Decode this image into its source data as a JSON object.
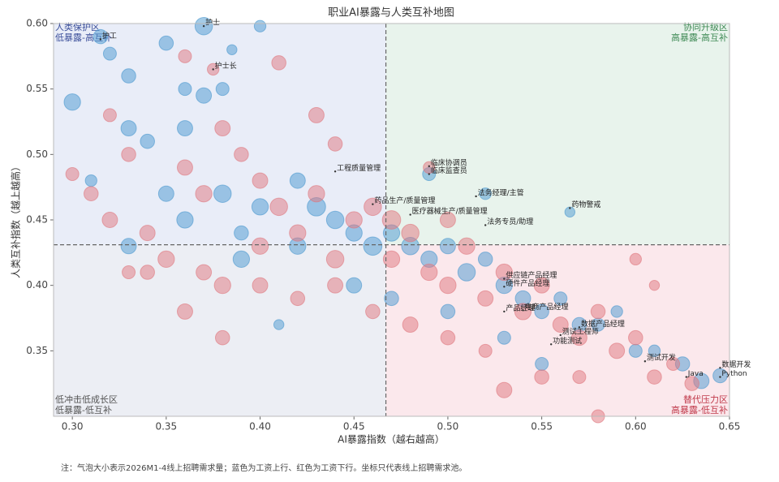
{
  "chart_data": {
    "type": "scatter",
    "title": "职业AI暴露与人类互补地图",
    "xlabel": "AI暴露指数（越右越高）",
    "ylabel": "人类互补指数（越上越高）",
    "note": "注：气泡大小表示2026M1-4线上招聘需求量；蓝色为工资上行、红色为工资下行。坐标只代表线上招聘需求池。",
    "xlim": [
      0.29,
      0.65
    ],
    "ylim": [
      0.3,
      0.6
    ],
    "xticks": [
      {
        "value": 0.3,
        "label": "0.30"
      },
      0.35,
      {
        "value": 0.4,
        "label": "0.40"
      },
      0.45,
      {
        "value": 0.5,
        "label": "0.50"
      },
      0.55,
      {
        "value": 0.6,
        "label": "0.60"
      },
      0.65
    ],
    "yticks": [
      0.35,
      {
        "value": 0.4,
        "label": "0.40"
      },
      0.45,
      {
        "value": 0.5,
        "label": "0.50"
      },
      0.55,
      {
        "value": 0.6,
        "label": "0.60"
      }
    ],
    "dividers": {
      "x": 0.467,
      "y": 0.431
    },
    "quadrants": [
      {
        "title": "人类保护区",
        "subtitle": "低暴露-高互补",
        "corner": "top-left",
        "color": "#3b4f9a",
        "fill": "#e9edf8"
      },
      {
        "title": "协同升级区",
        "subtitle": "高暴露-高互补",
        "corner": "top-right",
        "color": "#3f8a55",
        "fill": "#e8f3ec"
      },
      {
        "title": "低冲击低成长区",
        "subtitle": "低暴露-低互补",
        "corner": "bottom-left",
        "color": "#555555",
        "fill": "#eceef4"
      },
      {
        "title": "替代压力区",
        "subtitle": "高暴露-低互补",
        "corner": "bottom-right",
        "color": "#c0394a",
        "fill": "#fbe8ec"
      }
    ],
    "series": [
      {
        "color": "#4a98cf",
        "x": [
          0.3,
          0.315,
          0.32,
          0.33,
          0.34,
          0.35,
          0.36,
          0.37,
          0.38,
          0.4,
          0.37,
          0.33,
          0.35,
          0.36,
          0.38,
          0.39,
          0.4,
          0.42,
          0.43,
          0.44,
          0.45,
          0.46,
          0.47,
          0.48,
          0.49,
          0.5,
          0.51,
          0.52,
          0.53,
          0.54,
          0.55,
          0.56,
          0.57,
          0.58,
          0.59,
          0.6,
          0.61,
          0.625,
          0.635,
          0.645,
          0.49,
          0.52,
          0.565,
          0.41,
          0.45,
          0.47,
          0.5,
          0.53,
          0.55,
          0.33,
          0.39,
          0.42,
          0.31,
          0.385,
          0.36
        ],
        "values": [
          0.54,
          0.59,
          0.577,
          0.52,
          0.51,
          0.585,
          0.55,
          0.545,
          0.55,
          0.598,
          0.598,
          0.56,
          0.47,
          0.45,
          0.47,
          0.44,
          0.46,
          0.48,
          0.46,
          0.45,
          0.44,
          0.43,
          0.44,
          0.43,
          0.42,
          0.43,
          0.41,
          0.42,
          0.4,
          0.39,
          0.38,
          0.39,
          0.37,
          0.37,
          0.38,
          0.35,
          0.35,
          0.34,
          0.327,
          0.331,
          0.485,
          0.47,
          0.456,
          0.37,
          0.4,
          0.39,
          0.38,
          0.36,
          0.34,
          0.43,
          0.42,
          0.43,
          0.48,
          0.58,
          0.52
        ],
        "sizes": [
          40,
          30,
          25,
          35,
          30,
          30,
          25,
          35,
          25,
          20,
          45,
          30,
          35,
          40,
          45,
          30,
          40,
          35,
          50,
          45,
          40,
          50,
          40,
          45,
          40,
          35,
          45,
          30,
          40,
          35,
          30,
          25,
          30,
          25,
          20,
          25,
          20,
          30,
          35,
          30,
          25,
          20,
          15,
          15,
          35,
          30,
          30,
          25,
          25,
          35,
          40,
          40,
          20,
          15,
          35
        ]
      },
      {
        "color": "#e0767d",
        "x": [
          0.3,
          0.31,
          0.32,
          0.32,
          0.33,
          0.34,
          0.35,
          0.36,
          0.37,
          0.37,
          0.38,
          0.38,
          0.39,
          0.4,
          0.4,
          0.41,
          0.41,
          0.42,
          0.43,
          0.43,
          0.44,
          0.45,
          0.46,
          0.47,
          0.47,
          0.48,
          0.49,
          0.5,
          0.5,
          0.51,
          0.52,
          0.53,
          0.54,
          0.55,
          0.56,
          0.57,
          0.58,
          0.59,
          0.6,
          0.61,
          0.62,
          0.63,
          0.55,
          0.53,
          0.5,
          0.48,
          0.46,
          0.44,
          0.42,
          0.4,
          0.38,
          0.36,
          0.34,
          0.33,
          0.375,
          0.36,
          0.44,
          0.49,
          0.58,
          0.6,
          0.61,
          0.52,
          0.57
        ],
        "values": [
          0.485,
          0.47,
          0.45,
          0.53,
          0.5,
          0.44,
          0.42,
          0.49,
          0.47,
          0.41,
          0.4,
          0.52,
          0.5,
          0.48,
          0.43,
          0.46,
          0.57,
          0.44,
          0.53,
          0.47,
          0.42,
          0.45,
          0.46,
          0.45,
          0.42,
          0.44,
          0.41,
          0.45,
          0.4,
          0.43,
          0.39,
          0.41,
          0.38,
          0.4,
          0.37,
          0.36,
          0.38,
          0.35,
          0.36,
          0.33,
          0.34,
          0.325,
          0.33,
          0.32,
          0.36,
          0.37,
          0.38,
          0.4,
          0.39,
          0.4,
          0.36,
          0.38,
          0.41,
          0.41,
          0.565,
          0.575,
          0.508,
          0.49,
          0.3,
          0.42,
          0.4,
          0.35,
          0.33
        ],
        "sizes": [
          25,
          30,
          35,
          25,
          30,
          35,
          40,
          35,
          40,
          35,
          40,
          35,
          30,
          35,
          40,
          45,
          30,
          40,
          35,
          40,
          45,
          40,
          45,
          50,
          40,
          45,
          40,
          35,
          40,
          40,
          35,
          40,
          40,
          35,
          35,
          35,
          30,
          35,
          30,
          30,
          25,
          30,
          30,
          35,
          30,
          35,
          30,
          35,
          30,
          35,
          30,
          35,
          30,
          25,
          20,
          25,
          30,
          20,
          25,
          20,
          15,
          25,
          25
        ]
      }
    ],
    "annotations": [
      {
        "text": "护士",
        "x": 0.37,
        "y": 0.598
      },
      {
        "text": "护工",
        "x": 0.315,
        "y": 0.588
      },
      {
        "text": "护士长",
        "x": 0.375,
        "y": 0.565
      },
      {
        "text": "工程质量管理",
        "x": 0.44,
        "y": 0.487
      },
      {
        "text": "临床协调员",
        "x": 0.49,
        "y": 0.491
      },
      {
        "text": "临床监查员",
        "x": 0.49,
        "y": 0.485
      },
      {
        "text": "法务经理/主管",
        "x": 0.515,
        "y": 0.468
      },
      {
        "text": "药物警戒",
        "x": 0.565,
        "y": 0.459
      },
      {
        "text": "药品生产/质量管理",
        "x": 0.46,
        "y": 0.462
      },
      {
        "text": "医疗器械生产/质量管理",
        "x": 0.48,
        "y": 0.454
      },
      {
        "text": "法务专员/助理",
        "x": 0.52,
        "y": 0.446
      },
      {
        "text": "供应链产品经理",
        "x": 0.53,
        "y": 0.405
      },
      {
        "text": "硬件产品经理",
        "x": 0.53,
        "y": 0.399
      },
      {
        "text": "产品经理",
        "x": 0.53,
        "y": 0.38
      },
      {
        "text": "电商产品经理",
        "x": 0.54,
        "y": 0.381
      },
      {
        "text": "数据产品经理",
        "x": 0.57,
        "y": 0.368
      },
      {
        "text": "测试工程师",
        "x": 0.56,
        "y": 0.362
      },
      {
        "text": "功能测试",
        "x": 0.555,
        "y": 0.355
      },
      {
        "text": "测试开发",
        "x": 0.605,
        "y": 0.342
      },
      {
        "text": "数据开发",
        "x": 0.645,
        "y": 0.337
      },
      {
        "text": "Java",
        "x": 0.627,
        "y": 0.33
      },
      {
        "text": "Python",
        "x": 0.645,
        "y": 0.33
      }
    ]
  }
}
